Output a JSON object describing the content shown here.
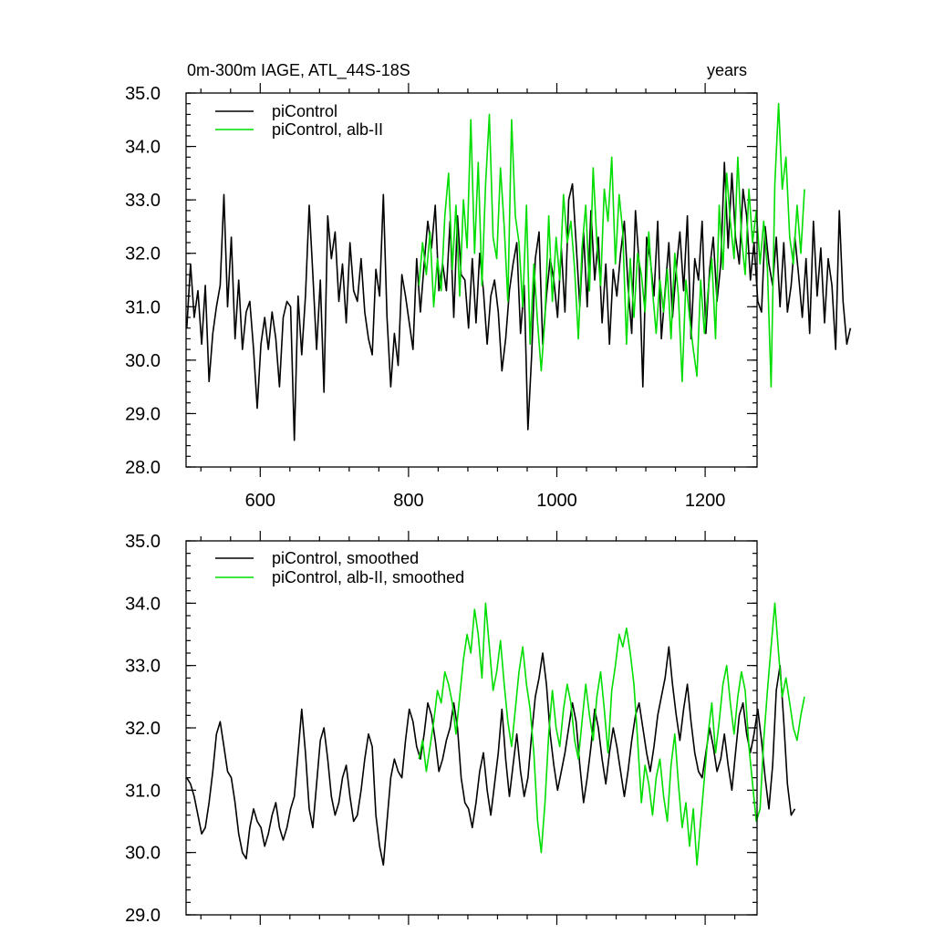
{
  "chart_data": [
    {
      "type": "line",
      "title_left": "0m-300m IAGE, ATL_44S-18S",
      "title_right": "years",
      "xlim": [
        500,
        1270
      ],
      "ylim": [
        28.0,
        35.0
      ],
      "x_ticks": [
        600,
        800,
        1000,
        1200
      ],
      "x_tick_labels": [
        "600",
        "800",
        "1000",
        "1200"
      ],
      "y_ticks": [
        28.0,
        29.0,
        30.0,
        31.0,
        32.0,
        33.0,
        34.0,
        35.0
      ],
      "y_tick_labels": [
        "28.0",
        "29.0",
        "30.0",
        "31.0",
        "32.0",
        "33.0",
        "34.0",
        "35.0"
      ],
      "legend_position": "top-left",
      "series": [
        {
          "name": "piControl",
          "color": "#000000",
          "x_start": 501,
          "x_step": 5,
          "values": [
            30.6,
            31.8,
            30.8,
            31.3,
            30.3,
            31.4,
            29.6,
            30.5,
            31.0,
            31.4,
            33.1,
            31.0,
            32.3,
            30.4,
            31.5,
            30.2,
            30.9,
            31.1,
            30.2,
            29.1,
            30.3,
            30.8,
            30.2,
            30.9,
            30.4,
            29.5,
            30.8,
            31.1,
            31.0,
            28.5,
            31.2,
            30.1,
            31.2,
            32.9,
            31.6,
            30.2,
            31.5,
            29.4,
            32.7,
            31.9,
            32.4,
            31.1,
            31.8,
            30.7,
            32.2,
            31.3,
            31.1,
            31.9,
            30.9,
            30.4,
            30.1,
            31.7,
            31.2,
            33.1,
            30.8,
            29.5,
            30.5,
            29.9,
            31.6,
            31.2,
            30.7,
            30.2,
            31.9,
            30.9,
            31.8,
            32.6,
            32.1,
            32.9,
            31.3,
            31.8,
            31.3,
            32.6,
            30.8,
            32.7,
            31.6,
            31.5,
            30.6,
            31.9,
            30.7,
            32.0,
            31.3,
            30.3,
            31.2,
            31.5,
            30.9,
            29.8,
            30.4,
            31.3,
            31.8,
            32.2,
            30.5,
            31.4,
            28.7,
            30.1,
            31.9,
            32.4,
            30.3,
            31.2,
            31.9,
            31.5,
            30.8,
            32.1,
            30.9,
            33.0,
            33.3,
            32.2,
            31.0,
            32.4,
            31.0,
            32.8,
            31.5,
            32.3,
            30.7,
            31.8,
            30.3,
            31.7,
            31.2,
            32.0,
            32.6,
            31.4,
            30.5,
            32.8,
            31.8,
            29.5,
            32.3,
            31.9,
            31.2,
            32.6,
            30.4,
            31.3,
            32.2,
            30.8,
            31.7,
            32.4,
            31.3,
            32.7,
            30.4,
            31.9,
            31.5,
            32.6,
            30.5,
            31.7,
            32.3,
            31.1,
            31.8,
            33.7,
            32.1,
            33.5,
            32.3,
            31.8,
            33.2,
            32.7,
            31.5,
            32.2,
            31.1,
            30.9,
            32.5,
            31.8,
            31.4,
            32.3,
            31.0,
            32.2,
            30.9,
            31.4,
            32.3,
            31.6,
            30.8,
            31.9,
            30.5,
            32.6,
            31.2,
            32.1,
            30.7,
            31.9,
            31.4,
            30.2,
            32.8,
            31.1,
            30.3,
            30.6
          ]
        },
        {
          "name": "piControl, alb-II",
          "color": "#00dd00",
          "x_start": 814,
          "x_step": 5,
          "values": [
            31.4,
            32.2,
            31.6,
            32.4,
            31.0,
            31.9,
            31.3,
            32.7,
            33.5,
            31.7,
            32.9,
            31.2,
            33.0,
            32.1,
            34.5,
            32.0,
            33.7,
            31.4,
            33.3,
            34.6,
            32.3,
            31.9,
            33.6,
            32.5,
            31.1,
            34.5,
            32.7,
            32.2,
            31.0,
            32.9,
            30.3,
            31.8,
            30.7,
            29.8,
            30.8,
            32.7,
            31.1,
            32.3,
            31.5,
            33.1,
            32.2,
            32.6,
            31.7,
            30.4,
            32.1,
            32.9,
            31.3,
            33.6,
            32.2,
            31.4,
            33.2,
            32.6,
            33.8,
            31.8,
            33.1,
            32.4,
            30.3,
            31.9,
            30.8,
            32.0,
            31.6,
            30.9,
            32.4,
            31.3,
            30.5,
            31.5,
            30.9,
            31.7,
            30.4,
            32.0,
            31.2,
            29.6,
            31.5,
            30.8,
            30.2,
            29.7,
            31.5,
            30.5,
            31.3,
            31.9,
            30.4,
            32.9,
            31.7,
            33.5,
            32.6,
            31.9,
            33.8,
            32.3,
            31.6,
            33.2,
            32.2,
            32.8,
            31.8,
            32.6,
            31.7,
            29.5,
            33.3,
            34.8,
            33.2,
            33.8,
            32.3,
            31.8,
            32.9,
            32.0,
            33.2
          ]
        }
      ]
    },
    {
      "type": "line",
      "xlim": [
        500,
        1270
      ],
      "ylim": [
        29.0,
        35.0
      ],
      "x_ticks": [
        600,
        800,
        1000,
        1200
      ],
      "y_ticks": [
        29.0,
        30.0,
        31.0,
        32.0,
        33.0,
        34.0,
        35.0
      ],
      "y_tick_labels": [
        "29.0",
        "30.0",
        "31.0",
        "32.0",
        "33.0",
        "34.0",
        "35.0"
      ],
      "legend_position": "top-left",
      "series": [
        {
          "name": "piControl, smoothed",
          "color": "#000000",
          "x_start": 501,
          "x_step": 5,
          "values": [
            31.2,
            31.1,
            30.9,
            30.6,
            30.3,
            30.4,
            30.8,
            31.3,
            31.9,
            32.1,
            31.7,
            31.3,
            31.2,
            30.8,
            30.3,
            30.0,
            29.9,
            30.4,
            30.7,
            30.5,
            30.4,
            30.1,
            30.3,
            30.6,
            30.8,
            30.4,
            30.2,
            30.4,
            30.7,
            30.9,
            31.6,
            32.3,
            31.6,
            30.7,
            30.4,
            31.1,
            31.8,
            32.0,
            31.5,
            30.9,
            30.6,
            30.8,
            31.2,
            31.4,
            30.9,
            30.5,
            30.6,
            31.0,
            31.5,
            31.9,
            31.7,
            30.6,
            30.1,
            29.8,
            30.5,
            31.2,
            31.5,
            31.3,
            31.2,
            31.8,
            32.3,
            32.1,
            31.7,
            31.5,
            31.9,
            32.4,
            32.2,
            31.8,
            31.3,
            31.5,
            31.8,
            32.0,
            32.4,
            32.0,
            31.2,
            30.8,
            30.7,
            30.4,
            30.8,
            31.3,
            31.6,
            31.0,
            30.6,
            31.1,
            31.6,
            32.3,
            31.5,
            30.9,
            31.4,
            31.9,
            31.3,
            30.9,
            31.2,
            31.9,
            32.5,
            32.8,
            33.2,
            32.7,
            31.9,
            31.4,
            31.0,
            31.3,
            31.6,
            32.0,
            32.4,
            32.1,
            31.4,
            30.8,
            31.2,
            31.7,
            32.3,
            32.0,
            31.5,
            31.1,
            31.6,
            32.0,
            31.7,
            31.3,
            30.9,
            31.3,
            31.8,
            32.2,
            32.4,
            32.0,
            31.6,
            31.3,
            31.7,
            32.2,
            32.5,
            32.8,
            33.3,
            32.7,
            32.2,
            31.8,
            32.3,
            32.7,
            32.1,
            31.6,
            31.3,
            31.2,
            31.6,
            32.0,
            31.7,
            31.3,
            31.5,
            31.9,
            31.4,
            31.0,
            31.6,
            32.2,
            32.4,
            31.9,
            31.6,
            31.9,
            32.3,
            31.8,
            31.2,
            30.7,
            31.4,
            32.6,
            33.0,
            32.1,
            31.1,
            30.6,
            30.7
          ]
        },
        {
          "name": "piControl, alb-II, smoothed",
          "color": "#00dd00",
          "x_start": 814,
          "x_step": 5,
          "values": [
            31.5,
            31.8,
            31.3,
            31.7,
            32.1,
            32.6,
            32.4,
            32.9,
            32.7,
            32.4,
            31.9,
            32.5,
            33.1,
            33.5,
            33.2,
            33.9,
            33.5,
            32.8,
            34.0,
            33.3,
            32.6,
            32.9,
            33.4,
            32.7,
            32.1,
            31.7,
            32.3,
            32.9,
            33.3,
            32.7,
            32.3,
            31.6,
            30.5,
            30.0,
            30.8,
            31.9,
            32.6,
            32.0,
            31.7,
            32.3,
            32.7,
            32.4,
            31.8,
            31.5,
            32.1,
            32.7,
            32.2,
            31.8,
            32.5,
            32.9,
            32.3,
            31.6,
            32.6,
            33.0,
            33.5,
            33.3,
            33.6,
            33.2,
            32.7,
            31.8,
            30.8,
            31.4,
            31.1,
            30.6,
            31.2,
            31.5,
            30.9,
            30.5,
            31.4,
            31.9,
            31.1,
            30.4,
            30.8,
            30.1,
            30.7,
            29.8,
            30.5,
            31.2,
            31.9,
            32.4,
            31.6,
            32.1,
            32.7,
            33.0,
            32.4,
            31.9,
            32.5,
            32.9,
            32.6,
            31.7,
            31.1,
            30.5,
            30.7,
            31.8,
            32.6,
            33.3,
            34.0,
            33.2,
            32.5,
            32.8,
            32.4,
            32.0,
            31.8,
            32.2,
            32.5
          ]
        }
      ]
    }
  ]
}
